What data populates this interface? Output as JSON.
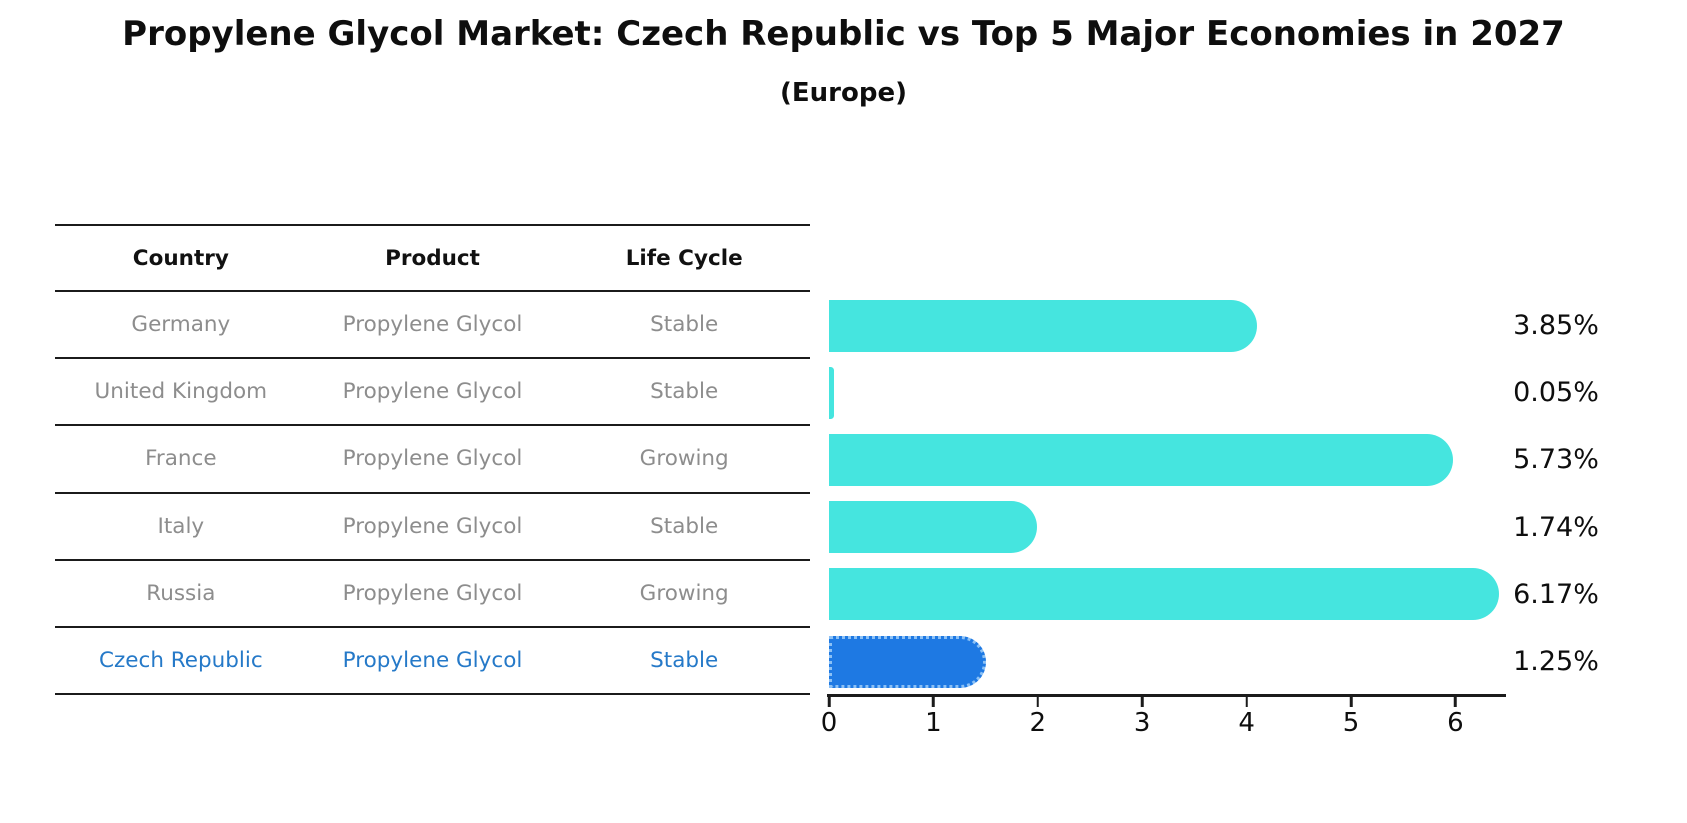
{
  "title": "Propylene Glycol Market: Czech Republic vs Top 5 Major Economies in 2027",
  "subtitle": "(Europe)",
  "table": {
    "headers": [
      "Country",
      "Product",
      "Life Cycle"
    ],
    "rows": [
      {
        "country": "Germany",
        "product": "Propylene Glycol",
        "life_cycle": "Stable",
        "highlight": false
      },
      {
        "country": "United Kingdom",
        "product": "Propylene Glycol",
        "life_cycle": "Stable",
        "highlight": false
      },
      {
        "country": "France",
        "product": "Propylene Glycol",
        "life_cycle": "Growing",
        "highlight": false
      },
      {
        "country": "Italy",
        "product": "Propylene Glycol",
        "life_cycle": "Stable",
        "highlight": false
      },
      {
        "country": "Russia",
        "product": "Propylene Glycol",
        "life_cycle": "Growing",
        "highlight": false
      },
      {
        "country": "Czech Republic",
        "product": "Propylene Glycol",
        "life_cycle": "Stable",
        "highlight": true
      }
    ]
  },
  "chart_data": {
    "type": "bar",
    "orientation": "horizontal",
    "title": "Propylene Glycol Market: Czech Republic vs Top 5 Major Economies in 2027",
    "subtitle": "(Europe)",
    "categories": [
      "Germany",
      "United Kingdom",
      "France",
      "Italy",
      "Russia",
      "Czech Republic"
    ],
    "values": [
      3.85,
      0.05,
      5.73,
      1.74,
      6.17,
      1.25
    ],
    "value_labels": [
      "3.85%",
      "0.05%",
      "5.73%",
      "1.74%",
      "6.17%",
      "1.25%"
    ],
    "x_tick_labels": [
      "0",
      "1",
      "2",
      "3",
      "4",
      "5",
      "6"
    ],
    "xlim": [
      0,
      6.5
    ],
    "grid": false,
    "legend": "none",
    "bar_color": "#45E5DF",
    "highlight_bar_color": "#1E79E3",
    "highlight_border_color": "#8cc1f5",
    "highlight_text_color": "#2579C8",
    "highlight_index": 5
  }
}
